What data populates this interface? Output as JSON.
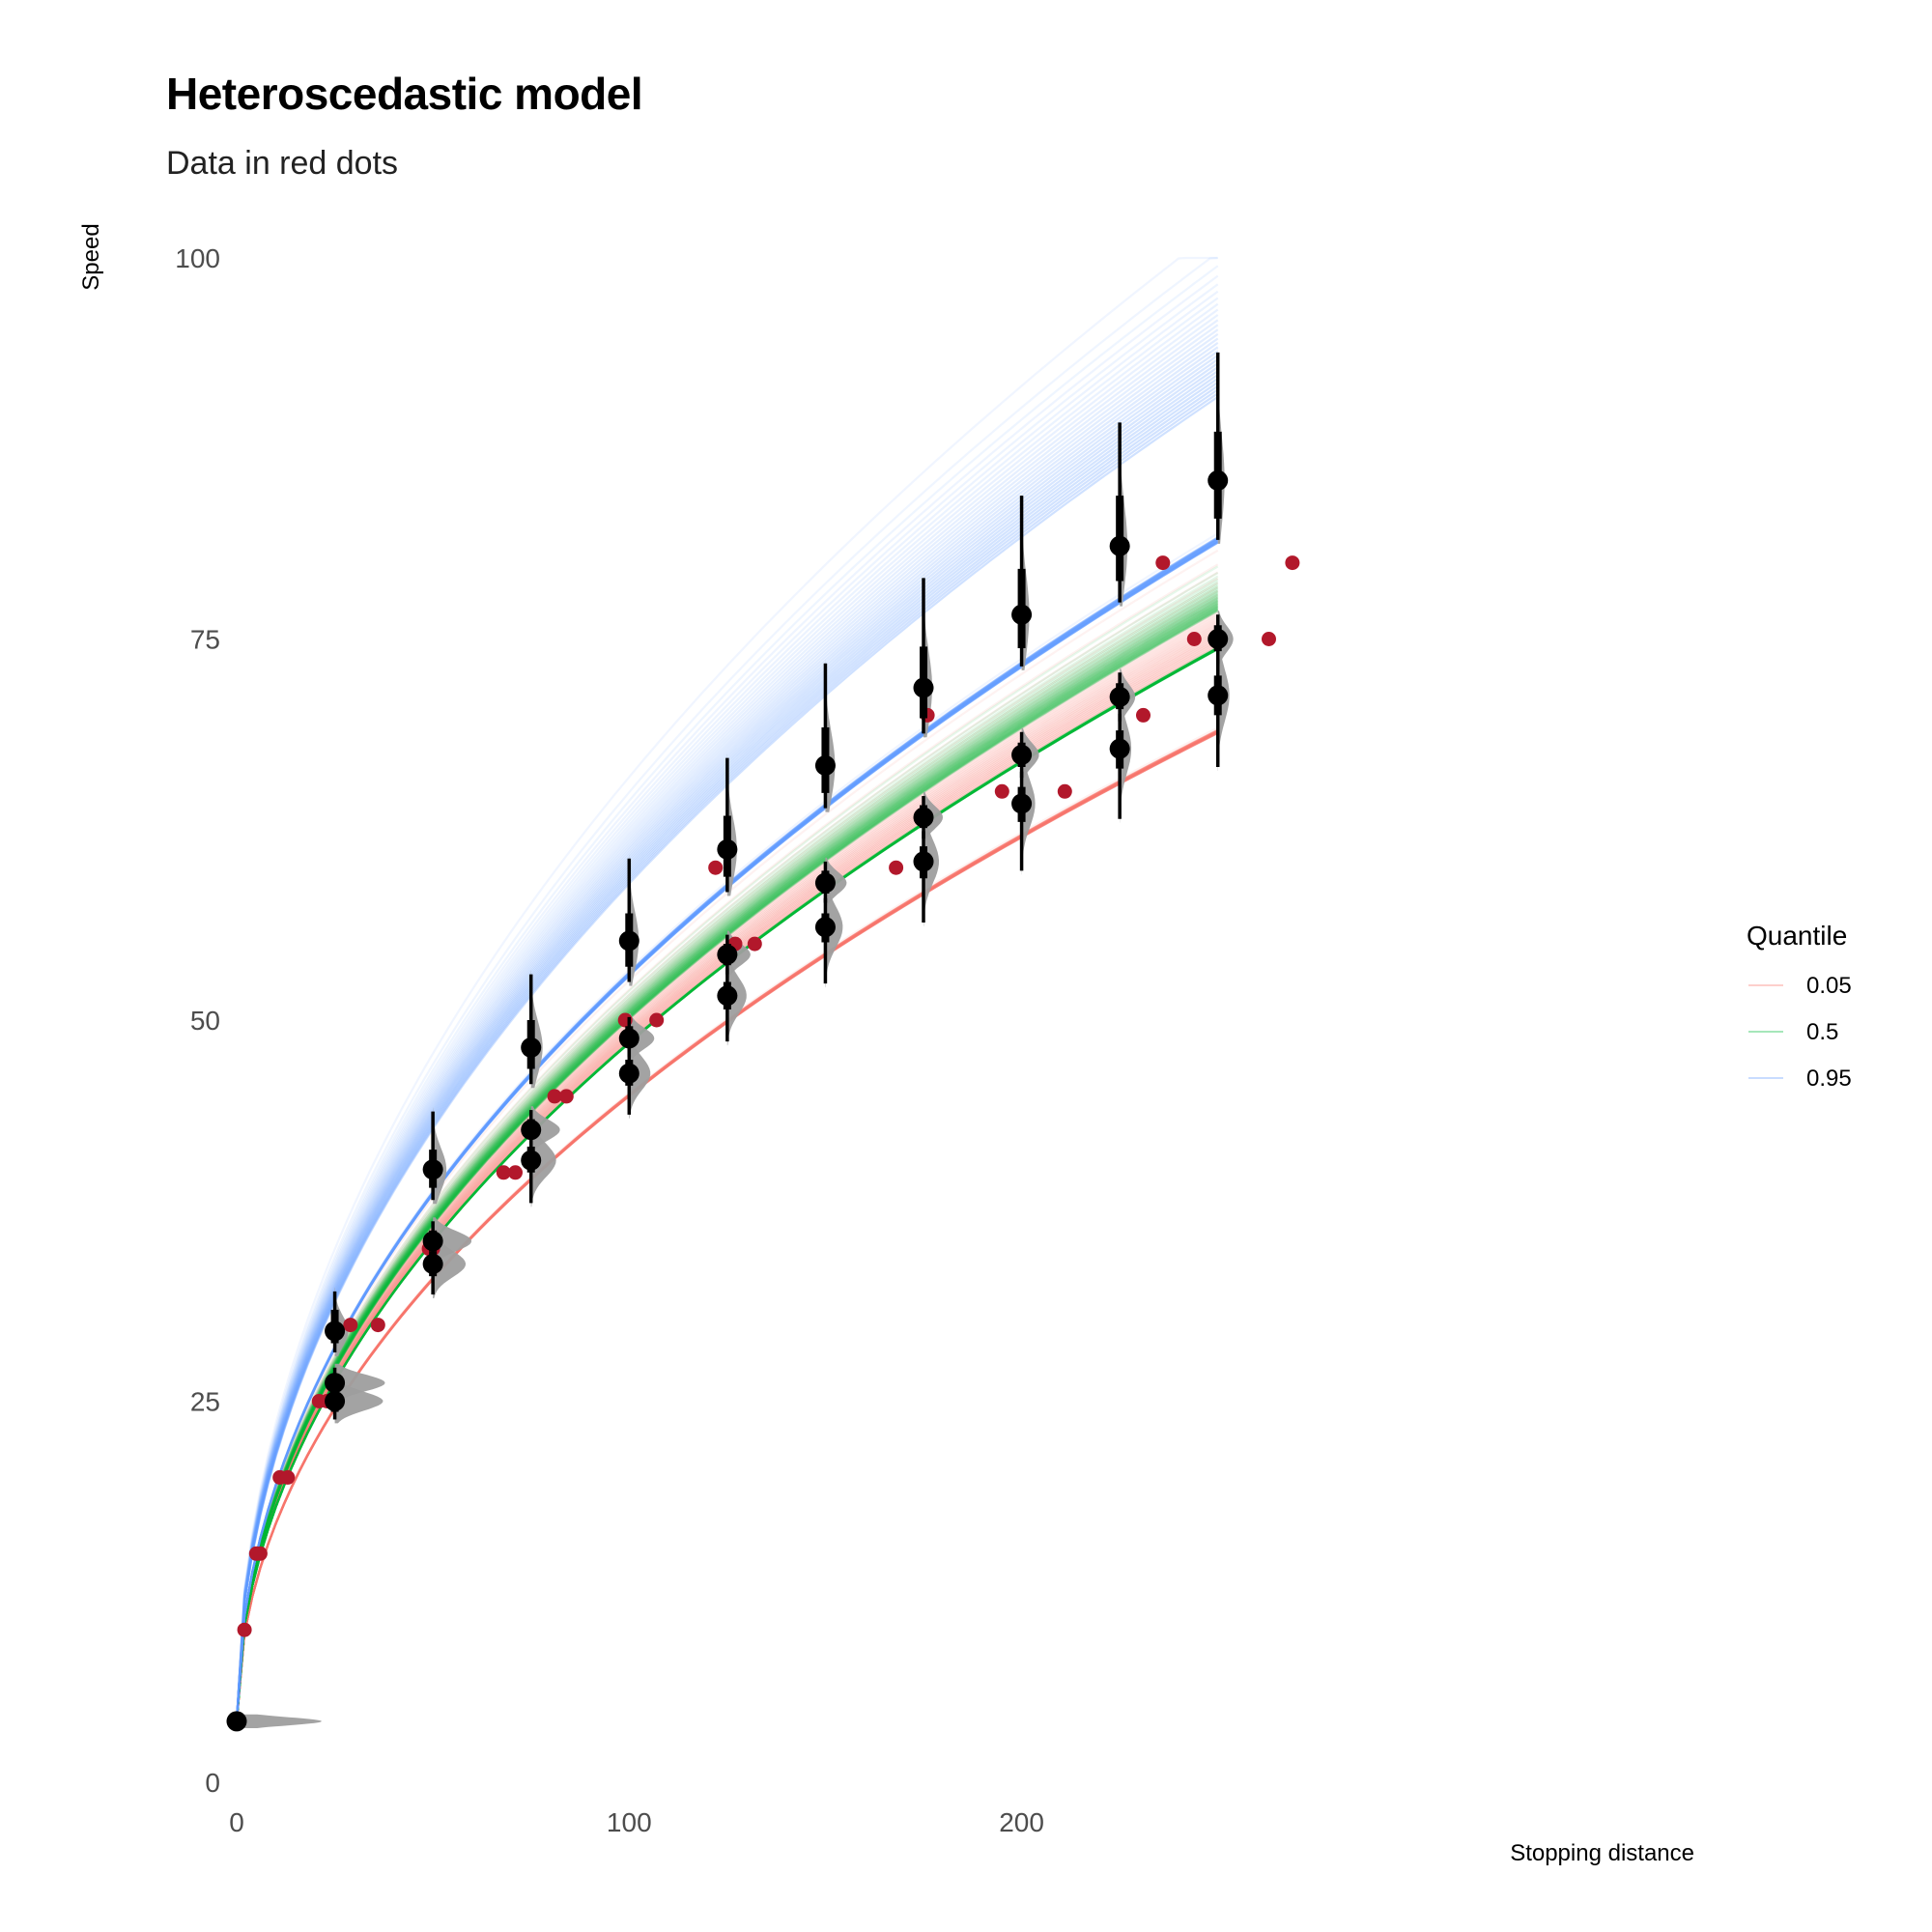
{
  "chart_data": {
    "type": "line",
    "title": "Heteroscedastic model",
    "subtitle": "Data in red dots",
    "xlabel": "Stopping distance",
    "ylabel": "Speed",
    "xlim": [
      -15,
      305
    ],
    "ylim": [
      0,
      100
    ],
    "x_ticks": [
      0,
      100,
      200
    ],
    "y_ticks": [
      0,
      25,
      50,
      75,
      100
    ],
    "grid": false,
    "legend": {
      "title": "Quantile",
      "placement": "right",
      "entries": [
        {
          "label": "0.05",
          "color": "#f8766d"
        },
        {
          "label": "0.5",
          "color": "#00ba38"
        },
        {
          "label": "0.95",
          "color": "#619cff"
        }
      ]
    },
    "curve_x_max": 250,
    "series": [
      {
        "name": "0.05",
        "color": "#f8766d",
        "center_coef": 4.5,
        "spread": 0.07
      },
      {
        "name": "0.5",
        "color": "#00ba38",
        "center_coef": 4.75,
        "spread": 0.03
      },
      {
        "name": "0.95",
        "color": "#619cff",
        "center_coef": 5.42,
        "spread": 0.1
      }
    ],
    "observed_points": {
      "color": "#b2182b",
      "points": [
        [
          2,
          10
        ],
        [
          5,
          15
        ],
        [
          6,
          15
        ],
        [
          11,
          20
        ],
        [
          13,
          20
        ],
        [
          21,
          25
        ],
        [
          23,
          25
        ],
        [
          29,
          30
        ],
        [
          36,
          30
        ],
        [
          49,
          35
        ],
        [
          50,
          35
        ],
        [
          68,
          40
        ],
        [
          71,
          40
        ],
        [
          81,
          45
        ],
        [
          84,
          45
        ],
        [
          99,
          50
        ],
        [
          107,
          50
        ],
        [
          122,
          60
        ],
        [
          127,
          55
        ],
        [
          132,
          55
        ],
        [
          168,
          60
        ],
        [
          176,
          70
        ],
        [
          195,
          65
        ],
        [
          211,
          65
        ],
        [
          231,
          70
        ],
        [
          236,
          80
        ],
        [
          244,
          75
        ],
        [
          263,
          75
        ],
        [
          269,
          80
        ]
      ]
    },
    "summaries": [
      {
        "x": 0,
        "median": 4,
        "inner": [
          3.9,
          4.1
        ],
        "outer": [
          3.8,
          4.2
        ],
        "density_width": 88
      },
      {
        "x": 25,
        "median": 29.6,
        "inner": [
          28.8,
          31
        ],
        "outer": [
          28.2,
          32.2
        ],
        "density_width": 14
      },
      {
        "x": 25,
        "median": 26.2,
        "inner": [
          25.6,
          26.8
        ],
        "outer": [
          25.2,
          27.2
        ],
        "density_width": 52
      },
      {
        "x": 25,
        "median": 25,
        "inner": [
          24.3,
          25.6
        ],
        "outer": [
          23.8,
          26.1
        ],
        "density_width": 50
      },
      {
        "x": 50,
        "median": 40.2,
        "inner": [
          39,
          41.5
        ],
        "outer": [
          38.2,
          44
        ],
        "density_width": 14
      },
      {
        "x": 50,
        "median": 35.5,
        "inner": [
          34.8,
          36.2
        ],
        "outer": [
          34.3,
          36.8
        ],
        "density_width": 40
      },
      {
        "x": 50,
        "median": 34,
        "inner": [
          33.2,
          34.8
        ],
        "outer": [
          32,
          35.4
        ],
        "density_width": 34
      },
      {
        "x": 75,
        "median": 48.2,
        "inner": [
          46.8,
          50
        ],
        "outer": [
          45.8,
          53
        ],
        "density_width": 12
      },
      {
        "x": 75,
        "median": 42.8,
        "inner": [
          42.2,
          43.5
        ],
        "outer": [
          41.6,
          44.1
        ],
        "density_width": 30
      },
      {
        "x": 75,
        "median": 40.8,
        "inner": [
          40,
          41.7
        ],
        "outer": [
          38,
          42.4
        ],
        "density_width": 26
      },
      {
        "x": 100,
        "median": 55.2,
        "inner": [
          53.5,
          57
        ],
        "outer": [
          52.5,
          60.6
        ],
        "density_width": 10
      },
      {
        "x": 100,
        "median": 48.8,
        "inner": [
          48.2,
          49.6
        ],
        "outer": [
          47.6,
          50.2
        ],
        "density_width": 26
      },
      {
        "x": 100,
        "median": 46.5,
        "inner": [
          45.7,
          47.4
        ],
        "outer": [
          43.8,
          48.2
        ],
        "density_width": 22
      },
      {
        "x": 125,
        "median": 61.2,
        "inner": [
          59.4,
          63.4
        ],
        "outer": [
          58.4,
          67.2
        ],
        "density_width": 10
      },
      {
        "x": 125,
        "median": 54.3,
        "inner": [
          53.6,
          55
        ],
        "outer": [
          53,
          55.6
        ],
        "density_width": 24
      },
      {
        "x": 125,
        "median": 51.6,
        "inner": [
          50.7,
          52.5
        ],
        "outer": [
          48.6,
          53.4
        ],
        "density_width": 20
      },
      {
        "x": 150,
        "median": 66.7,
        "inner": [
          64.9,
          69.2
        ],
        "outer": [
          63.9,
          73.4
        ],
        "density_width": 10
      },
      {
        "x": 150,
        "median": 59,
        "inner": [
          58.3,
          59.8
        ],
        "outer": [
          57.7,
          60.4
        ],
        "density_width": 22
      },
      {
        "x": 150,
        "median": 56.1,
        "inner": [
          55.1,
          57
        ],
        "outer": [
          52.4,
          58
        ],
        "density_width": 18
      },
      {
        "x": 175,
        "median": 71.8,
        "inner": [
          69.8,
          74.5
        ],
        "outer": [
          68.8,
          79
        ],
        "density_width": 9
      },
      {
        "x": 175,
        "median": 63.3,
        "inner": [
          62.6,
          64.1
        ],
        "outer": [
          61.9,
          64.7
        ],
        "density_width": 20
      },
      {
        "x": 175,
        "median": 60.4,
        "inner": [
          59.3,
          61.4
        ],
        "outer": [
          56.4,
          62.4
        ],
        "density_width": 16
      },
      {
        "x": 200,
        "median": 76.6,
        "inner": [
          74.4,
          79.6
        ],
        "outer": [
          73.2,
          84.4
        ],
        "density_width": 8
      },
      {
        "x": 200,
        "median": 67.4,
        "inner": [
          66.6,
          68.2
        ],
        "outer": [
          65.9,
          68.9
        ],
        "density_width": 18
      },
      {
        "x": 200,
        "median": 64.2,
        "inner": [
          63,
          65.3
        ],
        "outer": [
          59.8,
          66.3
        ],
        "density_width": 14
      },
      {
        "x": 225,
        "median": 81.1,
        "inner": [
          78.8,
          84.4
        ],
        "outer": [
          77.4,
          89.2
        ],
        "density_width": 8
      },
      {
        "x": 225,
        "median": 71.2,
        "inner": [
          70.4,
          72.1
        ],
        "outer": [
          69.6,
          72.8
        ],
        "density_width": 16
      },
      {
        "x": 225,
        "median": 67.8,
        "inner": [
          66.5,
          69
        ],
        "outer": [
          63.2,
          70.1
        ],
        "density_width": 12
      },
      {
        "x": 250,
        "median": 85.4,
        "inner": [
          82.9,
          88.6
        ],
        "outer": [
          81.5,
          93.8
        ],
        "density_width": 7
      },
      {
        "x": 250,
        "median": 75,
        "inner": [
          74.2,
          75.9
        ],
        "outer": [
          73.4,
          76.6
        ],
        "density_width": 16
      },
      {
        "x": 250,
        "median": 71.3,
        "inner": [
          70,
          72.6
        ],
        "outer": [
          66.6,
          73.7
        ],
        "density_width": 12
      }
    ]
  }
}
